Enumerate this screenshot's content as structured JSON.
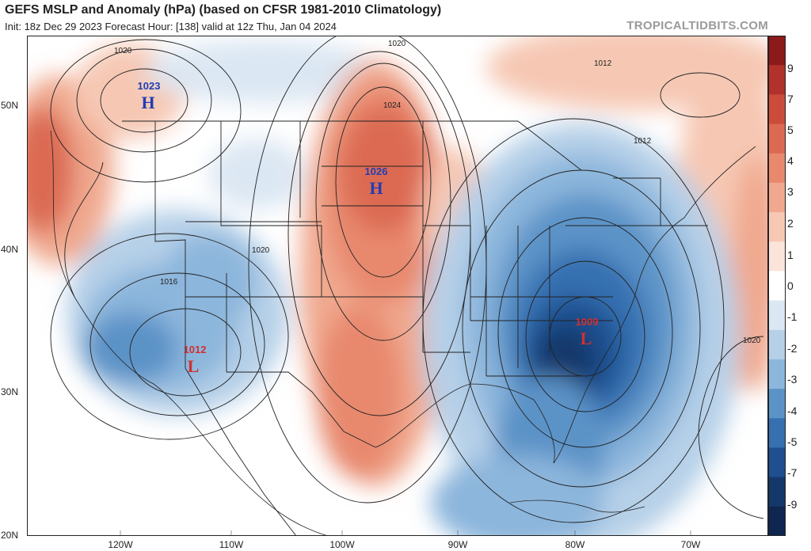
{
  "header": {
    "title": "GEFS MSLP and Anomaly (hPa) (based on CFSR 1981-2010 Climatology)",
    "subtitle": "Init: 18z Dec 29 2023   Forecast Hour: [138]   valid at 12z Thu, Jan 04 2024",
    "brand": "TROPICALTIDBITS.COM"
  },
  "axes": {
    "lat_labels": [
      "50N",
      "40N",
      "30N",
      "20N"
    ],
    "lon_labels": [
      "120W",
      "110W",
      "100W",
      "90W",
      "80W",
      "70W"
    ]
  },
  "colorbar": {
    "labels": [
      "9",
      "7",
      "5",
      "4",
      "3",
      "2",
      "1",
      "0",
      "-1",
      "-2",
      "-3",
      "-4",
      "-5",
      "-7",
      "-9"
    ],
    "colors": [
      "#8b1a1a",
      "#b0322a",
      "#cc4c3b",
      "#dc6a52",
      "#e8896e",
      "#f0a98f",
      "#f6c8b4",
      "#fbe4da",
      "#ffffff",
      "#dbe7f3",
      "#b6d0e8",
      "#8cb6dc",
      "#5b93c7",
      "#3670b0",
      "#1f4f8f",
      "#15386b",
      "#0e2650"
    ]
  },
  "pressure_centers": [
    {
      "type": "H",
      "value": "1023",
      "color": "#1f3fb0"
    },
    {
      "type": "H",
      "value": "1026",
      "color": "#1f3fb0"
    },
    {
      "type": "L",
      "value": "1012",
      "color": "#d03030"
    },
    {
      "type": "L",
      "value": "1009",
      "color": "#d03030"
    }
  ],
  "isobar_labels": [
    "1020",
    "1020",
    "1024",
    "1012",
    "1012",
    "1020",
    "1016",
    "1020"
  ]
}
